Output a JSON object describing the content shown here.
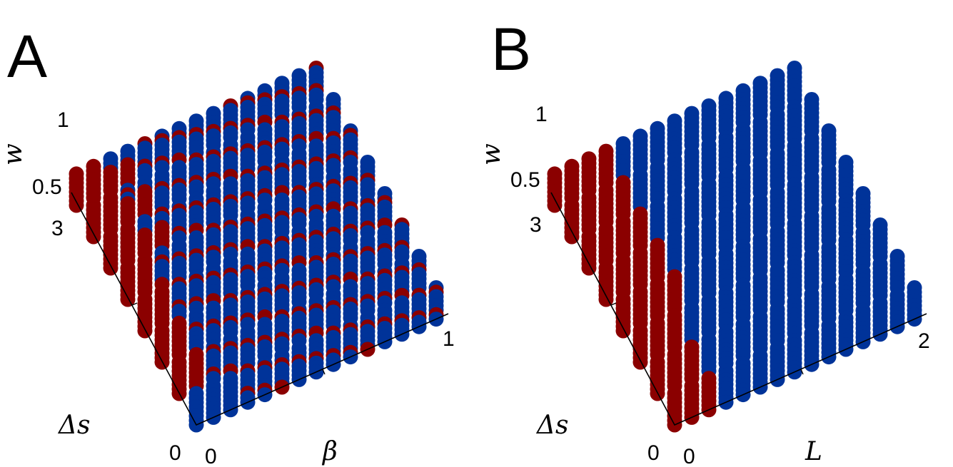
{
  "chart_data": [
    {
      "type": "scatter",
      "panel_label": "A",
      "axes": {
        "x": {
          "label": "β",
          "ticks": [
            "0",
            "1"
          ],
          "range": [
            0,
            1
          ]
        },
        "y": {
          "label": "Δs",
          "ticks": [
            "0",
            "3"
          ],
          "range": [
            0,
            3
          ]
        },
        "z": {
          "label": "w",
          "ticks": [
            "0.5",
            "1"
          ],
          "range": [
            0,
            1
          ]
        }
      },
      "grid": false,
      "legend": "none",
      "colors": {
        "class_0": "#003399",
        "class_1": "#8B0000"
      },
      "description_of_points": "Each (β, Δs) grid column contains a stack of points along w; points colored by class (red / blue).",
      "red_rule": "Δs high & β low region red; alternating mix elsewhere"
    },
    {
      "type": "scatter",
      "panel_label": "B",
      "axes": {
        "x": {
          "label": "L",
          "ticks": [
            "0",
            "2"
          ],
          "range": [
            0,
            2
          ]
        },
        "y": {
          "label": "Δs",
          "ticks": [
            "0",
            "3"
          ],
          "range": [
            0,
            3
          ]
        },
        "z": {
          "label": "w",
          "ticks": [
            "0.5",
            "1"
          ],
          "range": [
            0,
            1
          ]
        }
      },
      "grid": false,
      "legend": "none",
      "colors": {
        "class_0": "#003399",
        "class_1": "#8B0000"
      },
      "red_rule": "red for small L, blue for larger L"
    }
  ]
}
